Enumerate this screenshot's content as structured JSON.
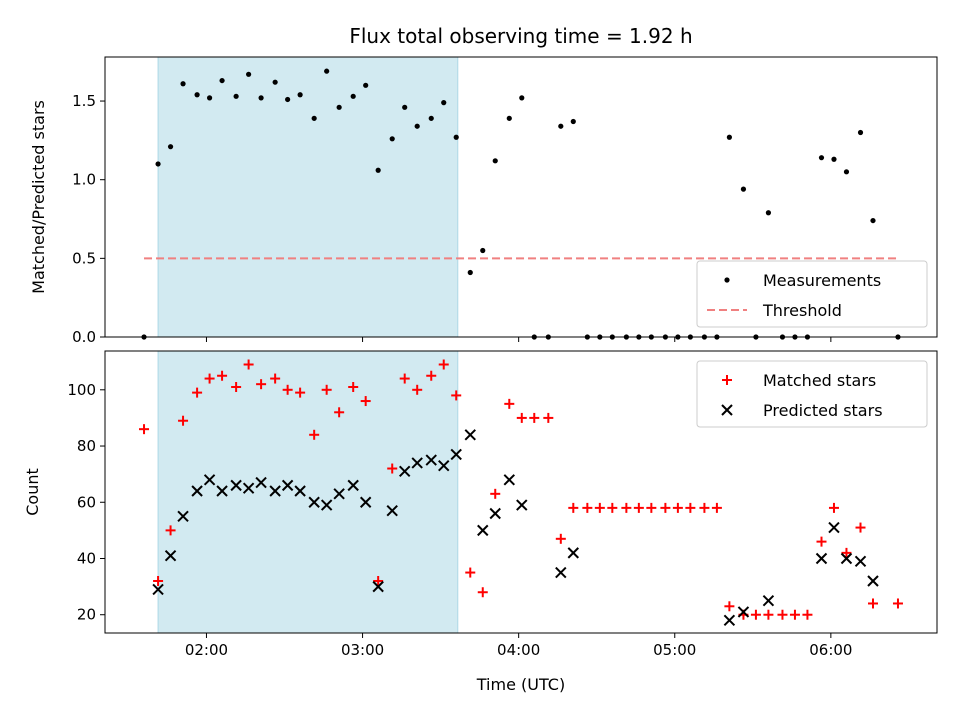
{
  "title": "Flux total observing time = 1.92 h",
  "colors": {
    "measurement": "#000000",
    "threshold": "#f08080",
    "matched": "#ff0000",
    "predicted": "#000000",
    "highlight": "#add8e6"
  },
  "chart_data": [
    {
      "type": "scatter",
      "ylabel": "Matched/Predicted stars",
      "ylim": [
        0.0,
        1.78
      ],
      "yticks": [
        0.0,
        0.5,
        1.0,
        1.5
      ],
      "ytick_labels": [
        "0.0",
        "0.5",
        "1.0",
        "1.5"
      ],
      "x_is_time_hours": true,
      "xlim": [
        1.35,
        6.68
      ],
      "highlight_span": [
        1.69,
        3.61
      ],
      "legend": {
        "position": "lower right",
        "labels": [
          "Measurements",
          "Threshold"
        ]
      },
      "threshold": {
        "name": "Threshold",
        "y": 0.5,
        "x_range": [
          1.6,
          6.43
        ]
      },
      "series": [
        {
          "name": "Measurements",
          "marker": "dot",
          "x": [
            1.6,
            1.69,
            1.77,
            1.85,
            1.94,
            2.02,
            2.1,
            2.19,
            2.27,
            2.35,
            2.44,
            2.52,
            2.6,
            2.69,
            2.77,
            2.85,
            2.94,
            3.02,
            3.1,
            3.19,
            3.27,
            3.35,
            3.44,
            3.52,
            3.6,
            3.69,
            3.77,
            3.85,
            3.94,
            4.02,
            4.1,
            4.19,
            4.27,
            4.35,
            4.44,
            4.52,
            4.6,
            4.69,
            4.77,
            4.85,
            4.94,
            5.02,
            5.1,
            5.19,
            5.27,
            5.35,
            5.44,
            5.52,
            5.6,
            5.69,
            5.77,
            5.85,
            5.94,
            6.02,
            6.1,
            6.19,
            6.27,
            6.43
          ],
          "y": [
            0.0,
            1.1,
            1.21,
            1.61,
            1.54,
            1.52,
            1.63,
            1.53,
            1.67,
            1.52,
            1.62,
            1.51,
            1.54,
            1.39,
            1.69,
            1.46,
            1.53,
            1.6,
            1.06,
            1.26,
            1.46,
            1.34,
            1.39,
            1.49,
            1.27,
            0.41,
            0.55,
            1.12,
            1.39,
            1.52,
            0.0,
            0.0,
            1.34,
            1.37,
            0.0,
            0.0,
            0.0,
            0.0,
            0.0,
            0.0,
            0.0,
            0.0,
            0.0,
            0.0,
            0.0,
            1.27,
            0.94,
            0.0,
            0.79,
            0.0,
            0.0,
            0.0,
            1.14,
            1.13,
            1.05,
            1.3,
            0.74,
            0.0
          ]
        }
      ]
    },
    {
      "type": "scatter",
      "xlabel": "Time (UTC)",
      "ylabel": "Count",
      "ylim": [
        13.5,
        113.8
      ],
      "yticks": [
        20,
        40,
        60,
        80,
        100
      ],
      "ytick_labels": [
        "20",
        "40",
        "60",
        "80",
        "100"
      ],
      "x_is_time_hours": true,
      "xlim": [
        1.35,
        6.68
      ],
      "xticks": [
        2,
        3,
        4,
        5,
        6
      ],
      "xtick_labels": [
        "02:00",
        "03:00",
        "04:00",
        "05:00",
        "06:00"
      ],
      "highlight_span": [
        1.69,
        3.61
      ],
      "legend": {
        "position": "upper right",
        "labels": [
          "Matched stars",
          "Predicted stars"
        ]
      },
      "series": [
        {
          "name": "Matched stars",
          "marker": "plus",
          "x": [
            1.6,
            1.69,
            1.77,
            1.85,
            1.94,
            2.02,
            2.1,
            2.19,
            2.27,
            2.35,
            2.44,
            2.52,
            2.6,
            2.69,
            2.77,
            2.85,
            2.94,
            3.02,
            3.1,
            3.19,
            3.27,
            3.35,
            3.44,
            3.52,
            3.6,
            3.69,
            3.77,
            3.85,
            3.94,
            4.02,
            4.1,
            4.19,
            4.27,
            4.35,
            4.44,
            4.52,
            4.6,
            4.69,
            4.77,
            4.85,
            4.94,
            5.02,
            5.1,
            5.19,
            5.27,
            5.35,
            5.44,
            5.52,
            5.6,
            5.69,
            5.77,
            5.85,
            5.94,
            6.02,
            6.1,
            6.19,
            6.27,
            6.43
          ],
          "y": [
            86,
            32,
            50,
            89,
            99,
            104,
            105,
            101,
            109,
            102,
            104,
            100,
            99,
            84,
            100,
            92,
            101,
            96,
            32,
            72,
            104,
            100,
            105,
            109,
            98,
            35,
            28,
            63,
            95,
            90,
            90,
            90,
            47,
            58,
            58,
            58,
            58,
            58,
            58,
            58,
            58,
            58,
            58,
            58,
            58,
            23,
            20,
            20,
            20,
            20,
            20,
            20,
            46,
            58,
            42,
            51,
            24,
            24
          ]
        },
        {
          "name": "Predicted stars",
          "marker": "x",
          "x": [
            1.69,
            1.77,
            1.85,
            1.94,
            2.02,
            2.1,
            2.19,
            2.27,
            2.35,
            2.44,
            2.52,
            2.6,
            2.69,
            2.77,
            2.85,
            2.94,
            3.02,
            3.1,
            3.19,
            3.27,
            3.35,
            3.44,
            3.52,
            3.6,
            3.69,
            3.77,
            3.85,
            3.94,
            4.02,
            4.27,
            4.35,
            5.35,
            5.44,
            5.6,
            5.94,
            6.02,
            6.1,
            6.19,
            6.27
          ],
          "y": [
            29,
            41,
            55,
            64,
            68,
            64,
            66,
            65,
            67,
            64,
            66,
            64,
            60,
            59,
            63,
            66,
            60,
            30,
            57,
            71,
            74,
            75,
            73,
            77,
            84,
            50,
            56,
            68,
            59,
            35,
            42,
            18,
            21,
            25,
            40,
            51,
            40,
            39,
            32
          ]
        }
      ]
    }
  ]
}
